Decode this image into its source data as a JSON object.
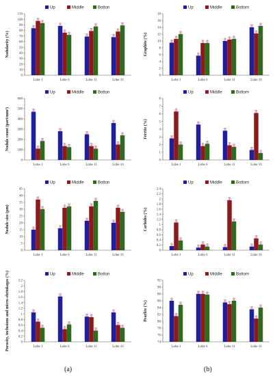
{
  "figure": {
    "caption_a": "(a)",
    "caption_b": "(b)"
  },
  "colors": {
    "Up": "#1f1f9e",
    "Middle": "#8b1a1a",
    "Bottom": "#2e6b1e",
    "error_bar": "#f6c1d8",
    "axis": "#555555"
  },
  "chart_data": [
    {
      "id": "nodularity",
      "type": "bar",
      "ylabel": "Nodularity (%)",
      "categories": [
        "Lobe 1",
        "Lobe 6",
        "Lobe 11",
        "Lobe 16"
      ],
      "legend": [
        "Up",
        "Middle",
        "Botton"
      ],
      "ylim": [
        0,
        110
      ],
      "yticks": [
        0,
        10,
        20,
        30,
        40,
        50,
        60,
        70,
        80,
        90,
        100,
        110
      ],
      "series": [
        {
          "name": "Up",
          "values": [
            84,
            88,
            69,
            68
          ]
        },
        {
          "name": "Middle",
          "values": [
            97,
            76,
            79,
            78
          ]
        },
        {
          "name": "Botton",
          "values": [
            93,
            72,
            87,
            89
          ]
        }
      ]
    },
    {
      "id": "graphite",
      "type": "bar",
      "ylabel": "Graphite (%)",
      "categories": [
        "Lobe 1",
        "Lobe 6",
        "Lobe 11",
        "Lobe 16"
      ],
      "legend": [
        "Up",
        "Middle",
        "Bottom"
      ],
      "ylim": [
        0,
        18
      ],
      "yticks": [
        0,
        2,
        4,
        6,
        8,
        10,
        12,
        14,
        16,
        18
      ],
      "series": [
        {
          "name": "Up",
          "values": [
            9.5,
            5.7,
            10.0,
            14.0
          ]
        },
        {
          "name": "Middle",
          "values": [
            10.6,
            9.4,
            10.4,
            12.2
          ]
        },
        {
          "name": "Bottom",
          "values": [
            12.0,
            9.4,
            10.6,
            14.4
          ]
        }
      ]
    },
    {
      "id": "nodule-count",
      "type": "bar",
      "ylabel": "Nodule count (part/mm²)",
      "categories": [
        "Lobe 1",
        "Lobe 6",
        "Lobe 11",
        "Lobe 16"
      ],
      "legend": [
        "Up",
        "Middle",
        "Botton"
      ],
      "ylim": [
        0,
        600
      ],
      "yticks": [
        0,
        100,
        200,
        300,
        400,
        500,
        600
      ],
      "series": [
        {
          "name": "Up",
          "values": [
            470,
            280,
            250,
            360
          ]
        },
        {
          "name": "Middle",
          "values": [
            110,
            135,
            135,
            150
          ]
        },
        {
          "name": "Botton",
          "values": [
            185,
            125,
            110,
            240
          ]
        }
      ]
    },
    {
      "id": "ferrite",
      "type": "bar",
      "ylabel": "Ferrite (%)",
      "categories": [
        "Lobe 1",
        "Lobe 6",
        "Lobe 11",
        "Lobe 16"
      ],
      "legend": [
        "Up",
        "Middle",
        "Bottom"
      ],
      "ylim": [
        0,
        8
      ],
      "yticks": [
        0,
        1,
        2,
        3,
        4,
        5,
        6,
        7,
        8
      ],
      "series": [
        {
          "name": "Up",
          "values": [
            2.8,
            4.6,
            3.8,
            1.3
          ]
        },
        {
          "name": "Middle",
          "values": [
            6.3,
            1.8,
            1.9,
            6.1
          ]
        },
        {
          "name": "Bottom",
          "values": [
            2.0,
            2.1,
            1.7,
            0.9
          ]
        }
      ]
    },
    {
      "id": "nodule-size",
      "type": "bar",
      "ylabel": "Nodule size (μm)",
      "categories": [
        "Lobe 1",
        "Lobe 6",
        "Lobe 11",
        "Lobe 16"
      ],
      "legend": [
        "Up",
        "Middle",
        "Botton"
      ],
      "ylim": [
        0,
        45
      ],
      "yticks": [
        0,
        5,
        10,
        15,
        20,
        25,
        30,
        35,
        40,
        45
      ],
      "series": [
        {
          "name": "Up",
          "values": [
            15,
            16,
            21.5,
            20
          ]
        },
        {
          "name": "Middle",
          "values": [
            37,
            31,
            32,
            31
          ]
        },
        {
          "name": "Botton",
          "values": [
            30,
            32,
            36,
            28
          ]
        }
      ]
    },
    {
      "id": "carbides",
      "type": "bar",
      "ylabel": "Carbides (%)",
      "categories": [
        "Lobe 1",
        "Lobe 6",
        "Lobe 11",
        "Lobe 16"
      ],
      "legend": [
        "Up",
        "Middle",
        "Bottom"
      ],
      "ylim": [
        0,
        2.4
      ],
      "yticks": [
        0,
        0.2,
        0.4,
        0.6,
        0.8,
        1,
        1.2,
        1.4,
        1.6,
        1.8,
        2,
        2.2,
        2.4
      ],
      "series": [
        {
          "name": "Up",
          "values": [
            0.16,
            0.1,
            0.12,
            0.14
          ]
        },
        {
          "name": "Middle",
          "values": [
            1.08,
            0.22,
            1.95,
            0.46
          ]
        },
        {
          "name": "Bottom",
          "values": [
            0.38,
            0.14,
            1.12,
            0.22
          ]
        }
      ]
    },
    {
      "id": "porosity",
      "type": "bar",
      "ylabel": "Porosity, inclusions and micro-shrinkages (%)",
      "categories": [
        "Lobe 1",
        "Lobe 6",
        "Lobe 11",
        "Lobe 16"
      ],
      "legend": [
        "Up",
        "Middle",
        "Botton"
      ],
      "ylim": [
        0,
        2.2
      ],
      "yticks": [
        0,
        0.2,
        0.4,
        0.6,
        0.8,
        1,
        1.2,
        1.4,
        1.6,
        1.8,
        2,
        2.2
      ],
      "series": [
        {
          "name": "Up",
          "values": [
            1.05,
            1.62,
            0.9,
            1.05
          ]
        },
        {
          "name": "Middle",
          "values": [
            0.72,
            0.45,
            0.88,
            0.6
          ]
        },
        {
          "name": "Botton",
          "values": [
            0.5,
            0.62,
            0.4,
            0.5
          ]
        }
      ]
    },
    {
      "id": "pearlite",
      "type": "bar",
      "ylabel": "Pearlite (%)",
      "categories": [
        "Lobe 1",
        "Lobe 6",
        "Lobe 11",
        "Lobe 16"
      ],
      "legend": [
        "Up",
        "Middle",
        "Bottom"
      ],
      "ylim": [
        74,
        92
      ],
      "yticks": [
        74,
        76,
        78,
        80,
        82,
        84,
        86,
        88,
        90,
        92
      ],
      "series": [
        {
          "name": "Up",
          "values": [
            86,
            88,
            85.5,
            83.5
          ]
        },
        {
          "name": "Middle",
          "values": [
            81.5,
            88,
            85,
            80.8
          ]
        },
        {
          "name": "Bottom",
          "values": [
            84.8,
            87.8,
            86,
            84
          ]
        }
      ]
    }
  ]
}
